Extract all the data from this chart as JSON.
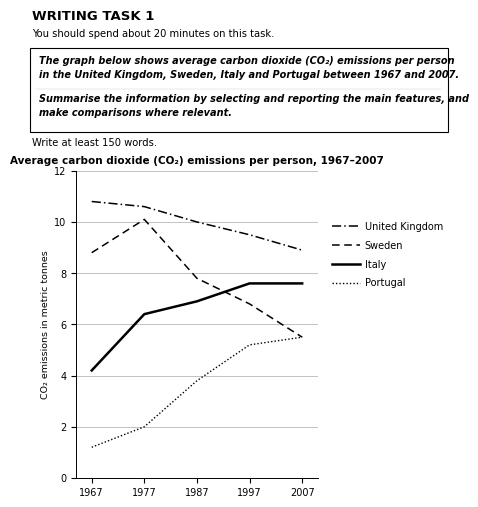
{
  "title": "Average carbon dioxide (CO₂) emissions per person, 1967–2007",
  "ylabel": "CO₂ emissions in metric tonnes",
  "years": [
    1967,
    1977,
    1987,
    1997,
    2007
  ],
  "uk": [
    10.8,
    10.6,
    10.0,
    9.5,
    8.9
  ],
  "sweden": [
    8.8,
    10.1,
    7.8,
    6.8,
    5.5
  ],
  "italy": [
    4.2,
    6.4,
    6.9,
    7.6,
    7.6
  ],
  "portugal": [
    1.2,
    2.0,
    3.8,
    5.2,
    5.5
  ],
  "ylim": [
    0,
    12
  ],
  "yticks": [
    0,
    2,
    4,
    6,
    8,
    10,
    12
  ],
  "xticks": [
    1967,
    1977,
    1987,
    1997,
    2007
  ],
  "heading": "WRITING TASK 1",
  "subheading": "You should spend about 20 minutes on this task.",
  "box_text_1": "The graph below shows average carbon dioxide (CO₂) emissions per person\nin the United Kingdom, Sweden, Italy and Portugal between 1967 and 2007.",
  "box_text_2": "Summarise the information by selecting and reporting the main features, and\nmake comparisons where relevant.",
  "footer": "Write at least 150 words.",
  "bg_color": "#ffffff"
}
